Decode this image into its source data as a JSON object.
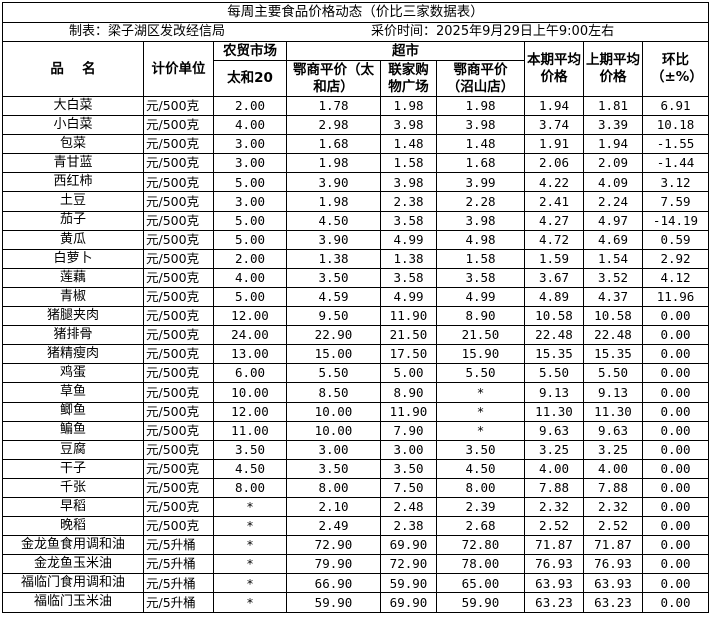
{
  "title": "每周主要食品价格动态（价比三家数据表）",
  "maker": "制表：梁子湖区发改经信局",
  "time": "采价时间：2025年9月29日上午9:00左右",
  "headers": {
    "name": "品　 名",
    "unit": "计价单位",
    "farm_market": "农贸市场",
    "supermarket": "超市",
    "taihe20": "太和20",
    "esp_taihe": "鄂商平价（太和店）",
    "lianjia": "联家购物广场",
    "esp_zhaoshan": "鄂商平价（沼山店）",
    "current_avg": "本期平均价格",
    "prev_avg": "上期平均价格",
    "change": "环比（±%）"
  },
  "rows": [
    [
      "大白菜",
      "元/500克",
      "2.00",
      "1.78",
      "1.98",
      "1.98",
      "1.94",
      "1.81",
      "6.91"
    ],
    [
      "小白菜",
      "元/500克",
      "4.00",
      "2.98",
      "3.98",
      "3.98",
      "3.74",
      "3.39",
      "10.18"
    ],
    [
      "包菜",
      "元/500克",
      "3.00",
      "1.68",
      "1.48",
      "1.48",
      "1.91",
      "1.94",
      "-1.55"
    ],
    [
      "青甘蓝",
      "元/500克",
      "3.00",
      "1.98",
      "1.58",
      "1.68",
      "2.06",
      "2.09",
      "-1.44"
    ],
    [
      "西红柿",
      "元/500克",
      "5.00",
      "3.90",
      "3.98",
      "3.99",
      "4.22",
      "4.09",
      "3.12"
    ],
    [
      "土豆",
      "元/500克",
      "3.00",
      "1.98",
      "2.38",
      "2.28",
      "2.41",
      "2.24",
      "7.59"
    ],
    [
      "茄子",
      "元/500克",
      "5.00",
      "4.50",
      "3.58",
      "3.98",
      "4.27",
      "4.97",
      "-14.19"
    ],
    [
      "黄瓜",
      "元/500克",
      "5.00",
      "3.90",
      "4.99",
      "4.98",
      "4.72",
      "4.69",
      "0.59"
    ],
    [
      "白萝卜",
      "元/500克",
      "2.00",
      "1.38",
      "1.38",
      "1.58",
      "1.59",
      "1.54",
      "2.92"
    ],
    [
      "莲藕",
      "元/500克",
      "4.00",
      "3.50",
      "3.58",
      "3.58",
      "3.67",
      "3.52",
      "4.12"
    ],
    [
      "青椒",
      "元/500克",
      "5.00",
      "4.59",
      "4.99",
      "4.99",
      "4.89",
      "4.37",
      "11.96"
    ],
    [
      "猪腿夹肉",
      "元/500克",
      "12.00",
      "9.50",
      "11.90",
      "8.90",
      "10.58",
      "10.58",
      "0.00"
    ],
    [
      "猪排骨",
      "元/500克",
      "24.00",
      "22.90",
      "21.50",
      "21.50",
      "22.48",
      "22.48",
      "0.00"
    ],
    [
      "猪精瘦肉",
      "元/500克",
      "13.00",
      "15.00",
      "17.50",
      "15.90",
      "15.35",
      "15.35",
      "0.00"
    ],
    [
      "鸡蛋",
      "元/500克",
      "6.00",
      "5.50",
      "5.00",
      "5.50",
      "5.50",
      "5.50",
      "0.00"
    ],
    [
      "草鱼",
      "元/500克",
      "10.00",
      "8.50",
      "8.90",
      "*",
      "9.13",
      "9.13",
      "0.00"
    ],
    [
      "鲫鱼",
      "元/500克",
      "12.00",
      "10.00",
      "11.90",
      "*",
      "11.30",
      "11.30",
      "0.00"
    ],
    [
      "鳊鱼",
      "元/500克",
      "11.00",
      "10.00",
      "7.90",
      "*",
      "9.63",
      "9.63",
      "0.00"
    ],
    [
      "豆腐",
      "元/500克",
      "3.50",
      "3.00",
      "3.00",
      "3.50",
      "3.25",
      "3.25",
      "0.00"
    ],
    [
      "干子",
      "元/500克",
      "4.50",
      "3.50",
      "3.50",
      "4.50",
      "4.00",
      "4.00",
      "0.00"
    ],
    [
      "千张",
      "元/500克",
      "8.00",
      "8.00",
      "7.50",
      "8.00",
      "7.88",
      "7.88",
      "0.00"
    ],
    [
      "早稻",
      "元/500克",
      "*",
      "2.10",
      "2.48",
      "2.39",
      "2.32",
      "2.32",
      "0.00"
    ],
    [
      "晚稻",
      "元/500克",
      "*",
      "2.49",
      "2.38",
      "2.68",
      "2.52",
      "2.52",
      "0.00"
    ],
    [
      "金龙鱼食用调和油",
      "元/5升桶",
      "*",
      "72.90",
      "69.90",
      "72.80",
      "71.87",
      "71.87",
      "0.00"
    ],
    [
      "金龙鱼玉米油",
      "元/5升桶",
      "*",
      "79.90",
      "72.90",
      "78.00",
      "76.93",
      "76.93",
      "0.00"
    ],
    [
      "福临门食用调和油",
      "元/5升桶",
      "*",
      "66.90",
      "59.90",
      "65.00",
      "63.93",
      "63.93",
      "0.00"
    ],
    [
      "福临门玉米油",
      "元/5升桶",
      "*",
      "59.90",
      "69.90",
      "59.90",
      "63.23",
      "63.23",
      "0.00"
    ]
  ]
}
